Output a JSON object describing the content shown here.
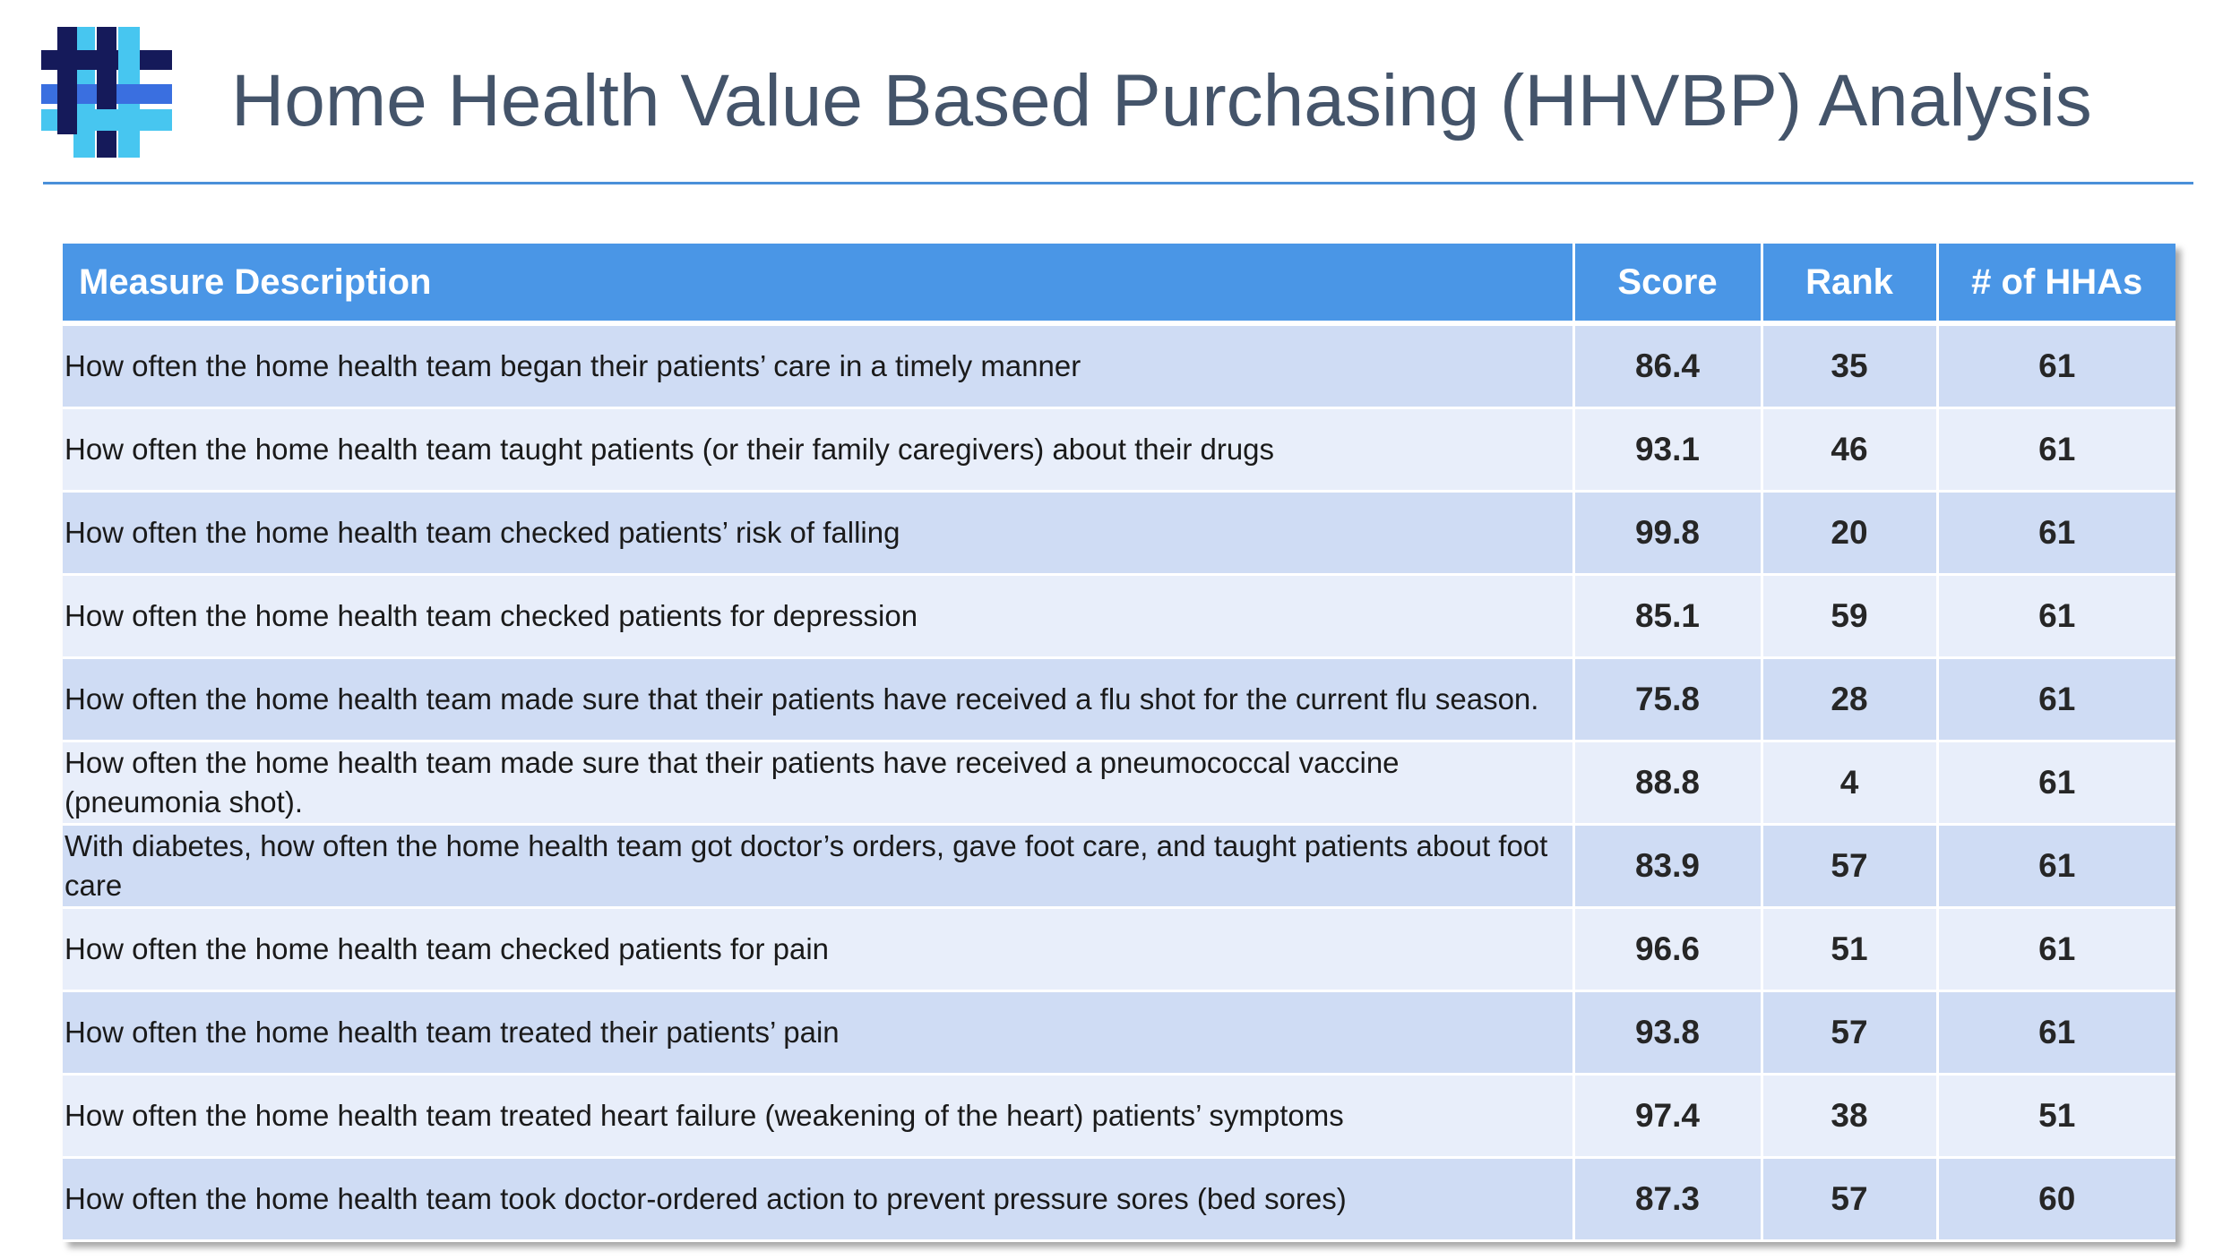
{
  "slide": {
    "title": "Home Health Value Based Purchasing (HHVBP) Analysis",
    "logo_icon": "hashtag-grid-logo",
    "colors": {
      "title": "#44546a",
      "accent_rule": "#4a90d9",
      "header_bg": "#4a96e6",
      "row_odd": "#cfdcf4",
      "row_even": "#e8eefa",
      "logo_dark": "#151a5a",
      "logo_mid": "#3a6fe0",
      "logo_light": "#47c6f0"
    }
  },
  "table": {
    "headers": {
      "description": "Measure Description",
      "score": "Score",
      "rank": "Rank",
      "hhas": "# of HHAs"
    },
    "rows": [
      {
        "description": "How often the home health team began their patients’ care in a timely manner",
        "score": "86.4",
        "rank": "35",
        "hhas": "61"
      },
      {
        "description": "How often the home health team taught patients (or their family caregivers) about their drugs",
        "score": "93.1",
        "rank": "46",
        "hhas": "61"
      },
      {
        "description": "How often the home health team checked patients’ risk of falling",
        "score": "99.8",
        "rank": "20",
        "hhas": "61"
      },
      {
        "description": "How often the home health team checked patients for depression",
        "score": "85.1",
        "rank": "59",
        "hhas": "61"
      },
      {
        "description": "How often the home health team made sure that their patients have received a flu shot for the current flu season.",
        "score": "75.8",
        "rank": "28",
        "hhas": "61"
      },
      {
        "description": "How often the home health team made sure that their patients have received a pneumococcal vaccine (pneumonia shot).",
        "score": "88.8",
        "rank": "4",
        "hhas": "61"
      },
      {
        "description": "With diabetes, how often the home health team got doctor’s orders, gave foot care, and taught patients about foot care",
        "score": "83.9",
        "rank": "57",
        "hhas": "61"
      },
      {
        "description": "How often the home health team checked patients for pain",
        "score": "96.6",
        "rank": "51",
        "hhas": "61"
      },
      {
        "description": "How often the home health team treated their patients’ pain",
        "score": "93.8",
        "rank": "57",
        "hhas": "61"
      },
      {
        "description": "How often the home health team treated heart failure (weakening of the heart) patients’ symptoms",
        "score": "97.4",
        "rank": "38",
        "hhas": "51"
      },
      {
        "description": "How often the home health team took doctor-ordered action to prevent pressure sores (bed sores)",
        "score": "87.3",
        "rank": "57",
        "hhas": "60"
      }
    ]
  }
}
